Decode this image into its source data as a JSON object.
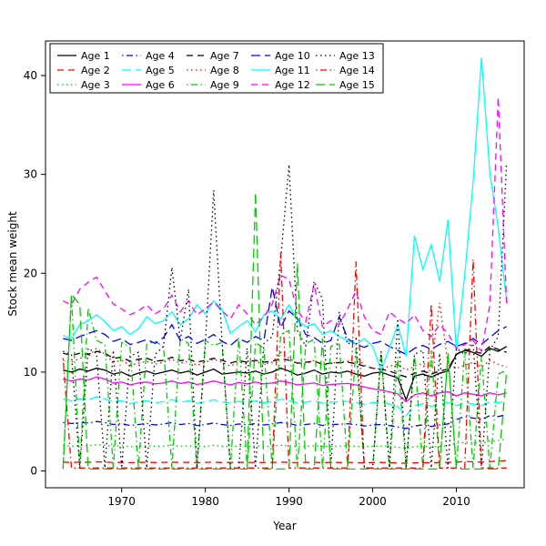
{
  "chart_data": {
    "type": "line",
    "title": "",
    "xlabel": "Year",
    "ylabel": "Stock mean weight",
    "xlim": [
      1960.9,
      2018.1
    ],
    "ylim": [
      -1.7,
      43.5
    ],
    "x_ticks": [
      1970,
      1980,
      1990,
      2000,
      2010
    ],
    "y_ticks": [
      0,
      10,
      20,
      30,
      40
    ],
    "grid": false,
    "legend_position": "top-left",
    "legend_columns": 5,
    "years": [
      1963,
      1964,
      1965,
      1966,
      1967,
      1968,
      1969,
      1970,
      1971,
      1972,
      1973,
      1974,
      1975,
      1976,
      1977,
      1978,
      1979,
      1980,
      1981,
      1982,
      1983,
      1984,
      1985,
      1986,
      1987,
      1988,
      1989,
      1990,
      1991,
      1992,
      1993,
      1994,
      1995,
      1996,
      1997,
      1998,
      1999,
      2000,
      2001,
      2002,
      2003,
      2004,
      2005,
      2006,
      2007,
      2008,
      2009,
      2010,
      2011,
      2012,
      2013,
      2014,
      2015,
      2016
    ],
    "series": [
      {
        "name": "Age 1",
        "color": "#000000",
        "linetype": "solid",
        "values": [
          10.2,
          10.0,
          10.3,
          10.1,
          10.4,
          10.2,
          9.8,
          10.0,
          9.6,
          9.9,
          10.1,
          9.8,
          10.0,
          10.2,
          9.9,
          10.1,
          9.7,
          10.0,
          10.3,
          9.8,
          9.9,
          10.0,
          9.9,
          10.1,
          9.8,
          10.0,
          10.4,
          10.1,
          9.7,
          9.9,
          10.2,
          9.8,
          10.0,
          9.9,
          10.1,
          9.8,
          9.6,
          9.9,
          10.0,
          9.7,
          9.4,
          7.2,
          9.6,
          9.8,
          9.5,
          9.9,
          10.1,
          11.8,
          12.2,
          12.0,
          11.6,
          12.4,
          12.1,
          12.6
        ]
      },
      {
        "name": "Age 2",
        "color": "#ff0000",
        "linetype": "dashed",
        "values": [
          0.9,
          0.85,
          0.9,
          0.88,
          0.92,
          0.9,
          0.85,
          0.87,
          0.84,
          0.86,
          0.88,
          0.85,
          0.87,
          0.9,
          0.86,
          0.88,
          0.84,
          0.87,
          0.9,
          0.85,
          0.86,
          0.88,
          0.85,
          0.87,
          0.84,
          0.86,
          0.9,
          0.87,
          0.84,
          0.86,
          0.88,
          0.84,
          0.86,
          0.85,
          0.87,
          0.84,
          0.82,
          0.85,
          0.86,
          0.83,
          0.8,
          0.78,
          0.82,
          0.84,
          0.81,
          0.85,
          0.87,
          0.9,
          0.95,
          0.92,
          0.9,
          0.95,
          1.0,
          1.05
        ]
      },
      {
        "name": "Age 3",
        "color": "#00cd00",
        "linetype": "dotted",
        "values": [
          2.6,
          2.5,
          2.6,
          2.55,
          2.65,
          2.6,
          2.5,
          2.55,
          2.45,
          2.5,
          2.55,
          2.5,
          2.52,
          2.6,
          2.5,
          2.55,
          2.45,
          2.5,
          2.6,
          2.5,
          2.48,
          2.52,
          2.5,
          2.55,
          2.48,
          2.52,
          2.6,
          2.55,
          2.48,
          2.5,
          2.55,
          2.48,
          2.5,
          2.52,
          2.55,
          2.5,
          2.45,
          2.5,
          2.52,
          2.48,
          2.4,
          2.3,
          2.45,
          2.5,
          2.42,
          2.5,
          2.55,
          2.8,
          2.9,
          2.85,
          2.8,
          3.0,
          3.1,
          3.2
        ]
      },
      {
        "name": "Age 4",
        "color": "#0000ff",
        "linetype": "dotdash",
        "values": [
          4.9,
          4.8,
          4.9,
          4.85,
          5.0,
          4.9,
          4.7,
          4.8,
          4.6,
          4.7,
          4.8,
          4.65,
          4.75,
          4.9,
          4.7,
          4.8,
          4.6,
          4.7,
          4.85,
          4.7,
          4.6,
          4.75,
          4.65,
          4.8,
          4.65,
          4.75,
          4.9,
          4.8,
          4.6,
          4.7,
          4.8,
          4.6,
          4.7,
          4.72,
          4.78,
          4.68,
          4.55,
          4.65,
          4.7,
          4.6,
          4.45,
          4.3,
          4.55,
          4.65,
          4.5,
          4.65,
          4.75,
          5.2,
          5.5,
          5.35,
          5.2,
          5.6,
          5.5,
          5.7
        ]
      },
      {
        "name": "Age 5",
        "color": "#00ffff",
        "linetype": "longdash",
        "values": [
          7.3,
          7.1,
          7.3,
          7.2,
          7.5,
          7.3,
          7.0,
          7.1,
          6.8,
          7.0,
          7.1,
          6.9,
          7.0,
          7.2,
          6.95,
          7.1,
          6.85,
          7.0,
          7.2,
          7.0,
          6.85,
          7.05,
          6.9,
          7.1,
          6.9,
          7.0,
          7.25,
          7.1,
          6.85,
          6.95,
          7.1,
          6.85,
          6.95,
          7.0,
          7.05,
          6.9,
          6.75,
          6.9,
          6.95,
          6.8,
          6.5,
          5.6,
          6.6,
          6.8,
          6.55,
          6.8,
          6.95,
          6.6,
          6.9,
          6.75,
          6.6,
          7.0,
          6.9,
          7.1
        ]
      },
      {
        "name": "Age 6",
        "color": "#ff00ff",
        "linetype": "solid",
        "values": [
          9.3,
          9.1,
          9.3,
          9.2,
          9.5,
          9.3,
          8.9,
          9.0,
          8.7,
          8.9,
          9.0,
          8.8,
          8.9,
          9.1,
          8.85,
          9.0,
          8.75,
          8.9,
          9.1,
          8.9,
          8.7,
          8.95,
          8.8,
          9.0,
          8.8,
          8.9,
          9.1,
          8.95,
          8.7,
          8.8,
          8.9,
          8.65,
          8.75,
          8.8,
          8.85,
          8.7,
          8.5,
          8.3,
          8.2,
          8.0,
          7.8,
          7.0,
          7.7,
          7.9,
          7.6,
          7.9,
          8.0,
          7.6,
          7.9,
          7.75,
          7.6,
          7.9,
          7.7,
          7.9
        ]
      },
      {
        "name": "Age 7",
        "color": "#000000",
        "linetype": "dashed",
        "values": [
          11.9,
          11.7,
          11.9,
          11.8,
          12.1,
          11.9,
          11.4,
          11.5,
          11.1,
          11.3,
          11.4,
          11.1,
          11.2,
          11.5,
          11.15,
          11.3,
          11.0,
          11.2,
          11.4,
          11.2,
          10.9,
          11.15,
          11.0,
          11.2,
          11.0,
          11.1,
          11.35,
          11.2,
          10.9,
          11.0,
          11.1,
          10.8,
          10.9,
          10.95,
          11.0,
          10.85,
          10.6,
          10.4,
          10.3,
          10.1,
          9.8,
          9.5,
          9.9,
          10.1,
          9.8,
          10.1,
          10.3,
          11.8,
          12.3,
          12.1,
          11.9,
          12.6,
          12.3,
          12.0
        ]
      },
      {
        "name": "Age 8",
        "color": "#ff0000",
        "linetype": "dotted",
        "values": [
          11.2,
          11.0,
          11.4,
          11.6,
          12.4,
          11.8,
          11.0,
          11.2,
          10.7,
          10.9,
          11.1,
          10.8,
          11.0,
          11.3,
          10.9,
          11.1,
          10.7,
          11.0,
          11.3,
          11.0,
          10.6,
          11.0,
          10.8,
          11.1,
          10.8,
          11.0,
          12.0,
          11.4,
          10.9,
          10.8,
          11.2,
          10.7,
          10.9,
          11.0,
          11.1,
          11.6,
          10.7,
          10.4,
          10.3,
          10.6,
          10.8,
          10.2,
          10.6,
          10.9,
          10.5,
          17.0,
          10.8,
          10.4,
          10.7,
          11.0,
          10.5,
          11.2,
          10.8,
          10.5
        ]
      },
      {
        "name": "Age 9",
        "color": "#00cd00",
        "linetype": "dotdash",
        "values": [
          0.3,
          17.8,
          0.3,
          16.5,
          13.2,
          12.8,
          0.3,
          13.0,
          12.5,
          0.3,
          12.8,
          13.1,
          12.6,
          0.3,
          13.4,
          12.9,
          0.3,
          13.2,
          12.7,
          13.0,
          0.3,
          13.5,
          0.3,
          13.0,
          12.4,
          0.3,
          13.8,
          14.2,
          0.3,
          12.9,
          13.3,
          0.3,
          12.6,
          13.0,
          0.3,
          12.4,
          0.3,
          0.3,
          12.0,
          0.3,
          11.5,
          0.3,
          11.8,
          0.3,
          12.2,
          0.3,
          11.9,
          0.3,
          12.1,
          0.3,
          11.6,
          0.3,
          9.8,
          10.2
        ]
      },
      {
        "name": "Age 10",
        "color": "#0000ff",
        "linetype": "longdash",
        "values": [
          13.4,
          13.2,
          13.6,
          13.9,
          14.2,
          13.8,
          13.1,
          13.4,
          12.8,
          13.0,
          13.3,
          12.9,
          13.5,
          14.8,
          13.2,
          13.6,
          12.9,
          13.3,
          13.8,
          13.1,
          12.7,
          13.4,
          13.0,
          13.6,
          13.2,
          18.6,
          14.5,
          16.2,
          15.4,
          13.8,
          13.5,
          12.9,
          13.2,
          15.6,
          13.4,
          12.8,
          12.5,
          12.9,
          13.1,
          12.6,
          12.2,
          11.8,
          12.4,
          12.7,
          12.3,
          12.8,
          13.1,
          12.6,
          12.9,
          13.4,
          12.8,
          13.5,
          14.2,
          14.6
        ]
      },
      {
        "name": "Age 11",
        "color": "#00ffff",
        "linetype": "solid",
        "values": [
          13.7,
          13.4,
          14.8,
          15.2,
          15.8,
          15.1,
          14.2,
          14.6,
          13.8,
          14.4,
          15.6,
          14.9,
          15.2,
          16.1,
          14.8,
          15.4,
          16.8,
          15.9,
          17.2,
          16.4,
          13.9,
          14.6,
          15.2,
          14.1,
          15.8,
          16.2,
          15.4,
          16.8,
          15.2,
          14.6,
          14.9,
          13.8,
          14.2,
          13.6,
          13.2,
          12.8,
          13.4,
          12.6,
          10.2,
          12.4,
          14.8,
          11.6,
          23.8,
          20.4,
          22.9,
          19.2,
          25.4,
          12.1,
          19.8,
          29.2,
          41.8,
          30.1,
          24.6,
          17.2
        ]
      },
      {
        "name": "Age 12",
        "color": "#ff00ff",
        "linetype": "dashed",
        "values": [
          17.2,
          16.8,
          18.4,
          19.1,
          19.6,
          18.2,
          16.9,
          16.4,
          15.8,
          16.2,
          16.8,
          15.9,
          16.4,
          17.8,
          16.1,
          17.2,
          15.8,
          16.4,
          17.1,
          16.2,
          15.4,
          16.8,
          15.9,
          14.8,
          15.6,
          16.9,
          19.8,
          19.4,
          16.2,
          15.1,
          18.9,
          14.6,
          15.2,
          14.8,
          16.4,
          18.2,
          15.6,
          14.2,
          13.8,
          16.1,
          15.4,
          14.9,
          15.8,
          14.2,
          13.6,
          14.8,
          13.9,
          12.4,
          12.8,
          13.2,
          12.1,
          16.8,
          37.8,
          16.9
        ]
      },
      {
        "name": "Age 13",
        "color": "#000000",
        "linetype": "dotted",
        "values": [
          12.1,
          11.8,
          0.3,
          12.4,
          11.9,
          0.3,
          12.2,
          0.3,
          11.6,
          12.0,
          0.3,
          11.8,
          12.6,
          20.6,
          13.2,
          18.4,
          0.3,
          12.8,
          28.4,
          13.1,
          0.3,
          0.3,
          12.4,
          0.3,
          12.9,
          13.6,
          21.4,
          31.0,
          14.2,
          12.6,
          19.2,
          17.4,
          0.3,
          16.1,
          12.8,
          13.4,
          0.3,
          0.3,
          12.1,
          0.3,
          15.4,
          0.3,
          11.8,
          12.2,
          0.3,
          11.9,
          0.3,
          12.4,
          11.8,
          12.9,
          0.3,
          12.2,
          13.6,
          31.2
        ]
      },
      {
        "name": "Age 14",
        "color": "#ff0000",
        "linetype": "dotdash",
        "values": [
          11.4,
          0.3,
          0.3,
          0.3,
          0.3,
          0.3,
          0.3,
          0.3,
          0.3,
          0.3,
          0.3,
          0.3,
          0.3,
          0.3,
          0.3,
          0.3,
          0.3,
          0.3,
          0.3,
          0.3,
          0.3,
          0.3,
          0.3,
          0.3,
          0.3,
          0.3,
          22.1,
          0.3,
          0.3,
          0.3,
          0.3,
          0.3,
          0.3,
          0.3,
          0.3,
          21.2,
          0.3,
          0.3,
          0.3,
          0.3,
          0.3,
          0.3,
          0.3,
          0.3,
          16.9,
          0.3,
          0.3,
          0.3,
          0.3,
          21.4,
          0.3,
          0.3,
          0.3,
          0.3
        ]
      },
      {
        "name": "Age 15",
        "color": "#00cd00",
        "linetype": "longdash",
        "values": [
          0.2,
          17.9,
          16.8,
          0.2,
          0.2,
          0.2,
          0.2,
          0.2,
          0.2,
          0.2,
          0.2,
          0.2,
          0.2,
          0.2,
          0.2,
          0.2,
          0.2,
          0.2,
          0.2,
          0.2,
          0.2,
          0.2,
          0.2,
          28.2,
          0.2,
          0.2,
          0.2,
          0.2,
          21.0,
          0.2,
          0.2,
          13.4,
          0.2,
          0.2,
          0.2,
          0.2,
          0.2,
          0.2,
          0.2,
          0.2,
          0.2,
          0.2,
          0.2,
          0.2,
          0.2,
          0.2,
          11.8,
          0.2,
          0.2,
          0.2,
          0.2,
          0.2,
          0.2,
          10.1
        ]
      }
    ]
  }
}
